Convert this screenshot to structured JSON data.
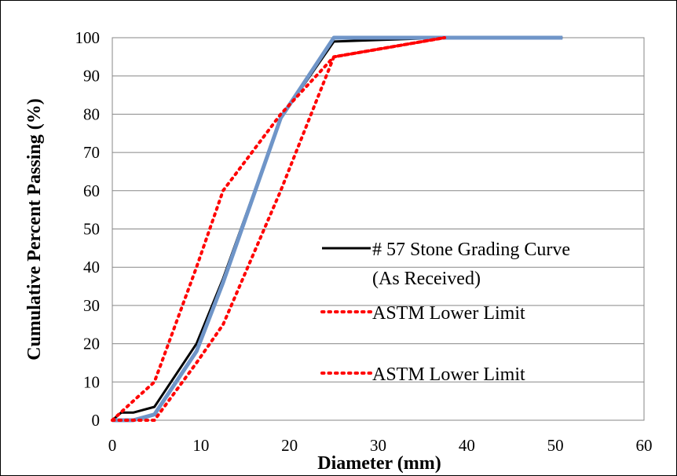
{
  "chart_data": {
    "type": "line",
    "title": "",
    "xlabel": "Diameter (mm)",
    "ylabel": "Cumulative Percent Passing (%)",
    "xlim": [
      0,
      60
    ],
    "ylim": [
      0,
      100
    ],
    "xticks": [
      0,
      10,
      20,
      30,
      40,
      50,
      60
    ],
    "yticks": [
      0,
      10,
      20,
      30,
      40,
      50,
      60,
      70,
      80,
      90,
      100
    ],
    "grid": "horizontal",
    "legend_position": "right",
    "series": [
      {
        "name": "# 57 Stone Grading Curve (As Received)",
        "legend_lines": [
          "# 57 Stone Grading Curve",
          "(As Received)"
        ],
        "color": "#000000",
        "style": "solid",
        "x": [
          0,
          1,
          2.36,
          4.75,
          9.5,
          12.5,
          19,
          25,
          37.5,
          50.8
        ],
        "y": [
          0,
          2,
          2,
          3.5,
          20,
          37,
          79,
          99,
          100,
          100
        ]
      },
      {
        "name": "",
        "color": "#6f95c8",
        "style": "solid",
        "x": [
          0,
          2.36,
          4.75,
          9.5,
          12.5,
          19,
          25,
          37.5,
          50.8
        ],
        "y": [
          0,
          0,
          1.5,
          18,
          36,
          79,
          100,
          100,
          100
        ]
      },
      {
        "name": "ASTM Lower Limit",
        "legend_lines": [
          "ASTM Lower Limit"
        ],
        "color": "#ff0000",
        "style": "dotted",
        "x": [
          0,
          2.36,
          4.75,
          9.5,
          12.5,
          19,
          25,
          37.5
        ],
        "y": [
          0,
          5,
          10,
          40,
          60,
          80,
          95,
          100
        ]
      },
      {
        "name": "ASTM Lower Limit",
        "legend_lines": [
          "ASTM Lower Limit"
        ],
        "color": "#ff0000",
        "style": "dotted",
        "x": [
          0,
          4.75,
          9.5,
          12.5,
          19,
          25,
          37.5
        ],
        "y": [
          0,
          0,
          15,
          25,
          60,
          95,
          100
        ]
      }
    ]
  }
}
